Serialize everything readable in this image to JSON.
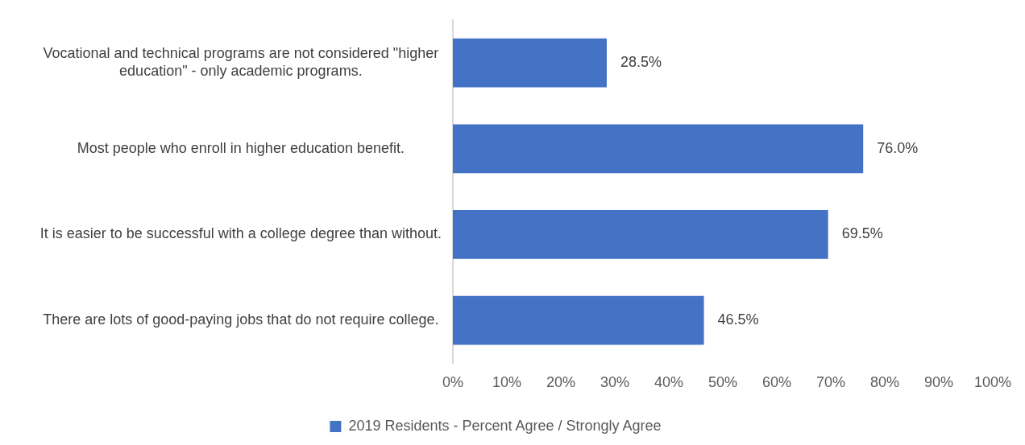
{
  "chart_data": {
    "type": "bar",
    "orientation": "horizontal",
    "categories": [
      "Vocational and technical programs are not considered \"higher education\" - only academic programs.",
      "Most people who enroll in higher education benefit.",
      "It is easier to be successful with a college degree than without.",
      "There are lots of good-paying jobs that do not require college."
    ],
    "series": [
      {
        "name": "2019 Residents - Percent Agree / Strongly Agree",
        "color": "#4472c4",
        "values": [
          28.5,
          76.0,
          69.5,
          46.5
        ],
        "value_labels": [
          "28.5%",
          "76.0%",
          "69.5%",
          "46.5%"
        ]
      }
    ],
    "xlim": [
      0,
      100
    ],
    "xticks": [
      {
        "value": 0,
        "label": "0%"
      },
      {
        "value": 10,
        "label": "10%"
      },
      {
        "value": 20,
        "label": "20%"
      },
      {
        "value": 30,
        "label": "30%"
      },
      {
        "value": 40,
        "label": "40%"
      },
      {
        "value": 50,
        "label": "50%"
      },
      {
        "value": 60,
        "label": "60%"
      },
      {
        "value": 70,
        "label": "70%"
      },
      {
        "value": 80,
        "label": "80%"
      },
      {
        "value": 90,
        "label": "90%"
      },
      {
        "value": 100,
        "label": "100%"
      }
    ],
    "grid": false,
    "legend": "bottom"
  }
}
